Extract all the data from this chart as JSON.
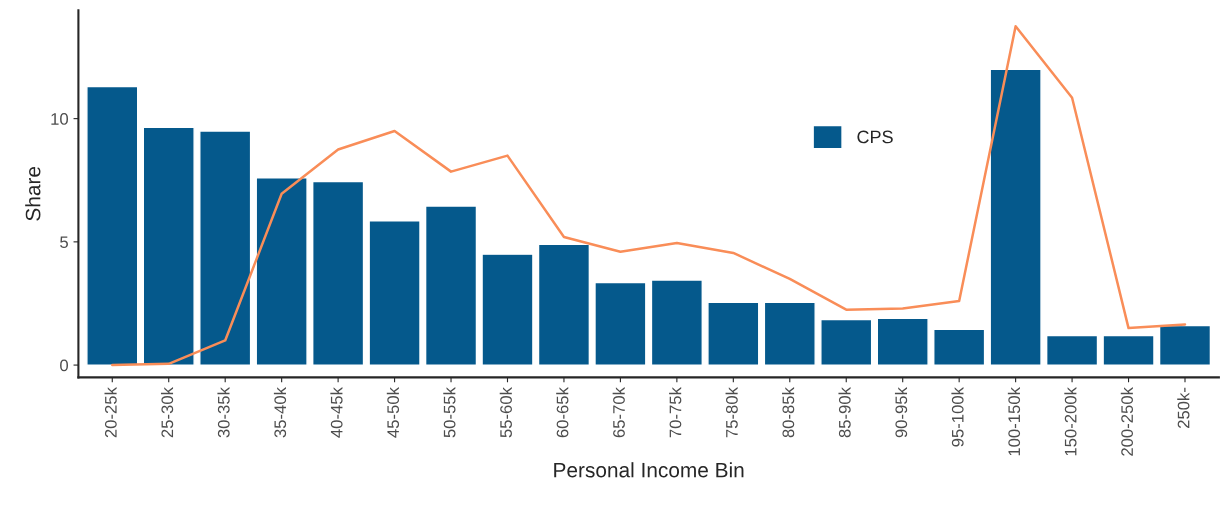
{
  "chart_data": {
    "type": "bar",
    "xlabel": "Personal Income Bin",
    "ylabel": "Share",
    "categories": [
      "20-25k",
      "25-30k",
      "30-35k",
      "35-40k",
      "40-45k",
      "45-50k",
      "50-55k",
      "55-60k",
      "60-65k",
      "65-70k",
      "70-75k",
      "75-80k",
      "80-85k",
      "85-90k",
      "90-95k",
      "95-100k",
      "100-150k",
      "150-200k",
      "200-250k",
      "250k-"
    ],
    "series": [
      {
        "name": "CPS",
        "color": "#05598c",
        "values": [
          11.3,
          9.65,
          9.5,
          7.6,
          7.45,
          5.85,
          6.45,
          4.5,
          4.9,
          3.35,
          3.45,
          2.55,
          2.55,
          1.85,
          1.9,
          1.45,
          12.0,
          1.2,
          1.2,
          1.6
        ]
      },
      {
        "type": "line",
        "color": "#f98d58",
        "values": [
          0,
          0.05,
          1.0,
          6.95,
          8.75,
          9.5,
          7.85,
          8.5,
          5.2,
          4.6,
          4.95,
          4.55,
          3.5,
          2.25,
          2.3,
          2.6,
          13.75,
          10.85,
          1.5,
          1.65
        ]
      }
    ],
    "ylim": [
      -0.5,
      14.4
    ],
    "yticks": [
      0,
      5,
      10
    ],
    "grid": false,
    "legend": "top right"
  }
}
